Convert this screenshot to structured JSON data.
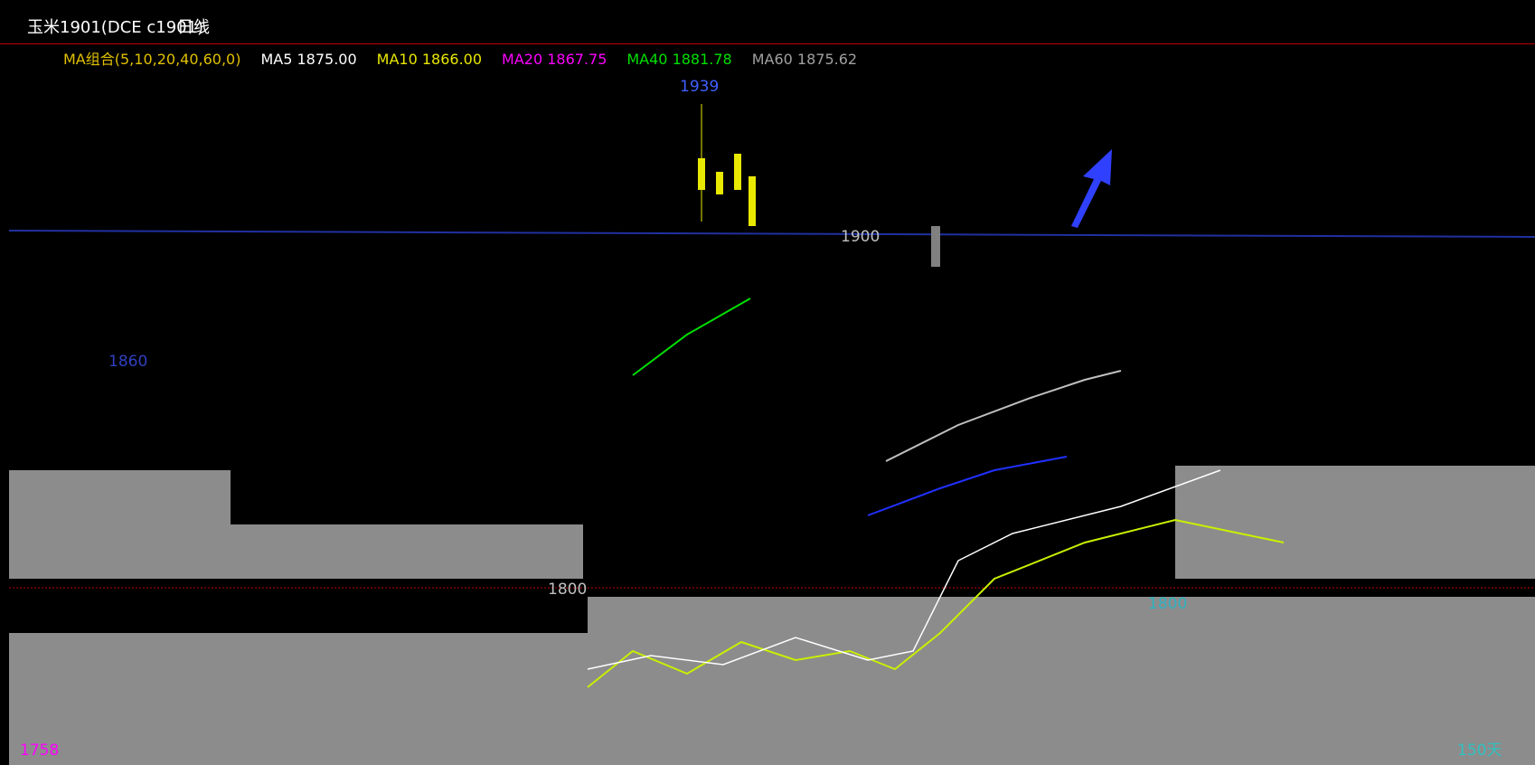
{
  "header": {
    "title": "玉米1901(DCE c1901)",
    "period": "日线"
  },
  "legend": {
    "name": "MA组合(5,10,20,40,60,0)",
    "color": "#e0c000",
    "items": [
      {
        "label": "MA5 1875.00",
        "color": "#ffffff"
      },
      {
        "label": "MA10 1866.00",
        "color": "#e8e800"
      },
      {
        "label": "MA20 1867.75",
        "color": "#ff00ff"
      },
      {
        "label": "MA40 1881.78",
        "color": "#00e000"
      },
      {
        "label": "MA60 1875.62",
        "color": "#a0a0a0"
      }
    ]
  },
  "price_labels": [
    {
      "text": "1939",
      "color": "#4060ff"
    },
    {
      "text": "1900",
      "color": "#c0c0c0"
    },
    {
      "text": "1860",
      "color": "#3040c0"
    },
    {
      "text": "1800",
      "color": "#c0c0c0"
    },
    {
      "text": "1800",
      "color": "#30b0c0"
    },
    {
      "text": "1758",
      "color": "#ff00ff"
    }
  ],
  "footer": {
    "days": "150天"
  }
}
